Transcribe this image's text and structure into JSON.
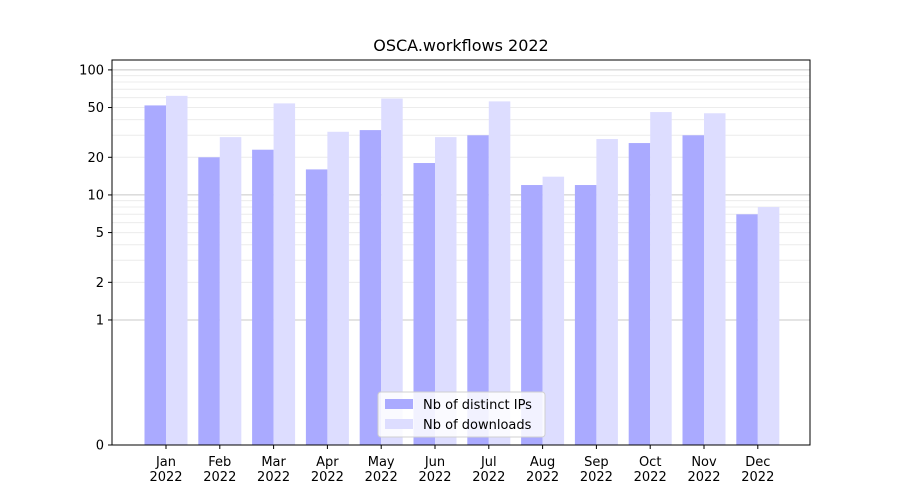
{
  "chart_data": {
    "type": "bar",
    "title": "OSCA.workflows 2022",
    "xlabel": "",
    "ylabel": "",
    "yscale": "symlog",
    "ylim": [
      0,
      120
    ],
    "grid": "y",
    "categories": [
      [
        "Jan",
        "2022"
      ],
      [
        "Feb",
        "2022"
      ],
      [
        "Mar",
        "2022"
      ],
      [
        "Apr",
        "2022"
      ],
      [
        "May",
        "2022"
      ],
      [
        "Jun",
        "2022"
      ],
      [
        "Jul",
        "2022"
      ],
      [
        "Aug",
        "2022"
      ],
      [
        "Sep",
        "2022"
      ],
      [
        "Oct",
        "2022"
      ],
      [
        "Nov",
        "2022"
      ],
      [
        "Dec",
        "2022"
      ]
    ],
    "series": [
      {
        "name": "Nb of distinct IPs",
        "color": "#aaaaff",
        "values": [
          52,
          20,
          23,
          16,
          33,
          18,
          30,
          12,
          12,
          26,
          30,
          7
        ]
      },
      {
        "name": "Nb of downloads",
        "color": "#ddddff",
        "values": [
          62,
          29,
          54,
          32,
          59,
          29,
          56,
          14,
          28,
          46,
          45,
          8
        ]
      }
    ],
    "yticks": [
      "0",
      "1",
      "2",
      "5",
      "10",
      "20",
      "50",
      "100"
    ],
    "legend_position": "bottom-center"
  }
}
